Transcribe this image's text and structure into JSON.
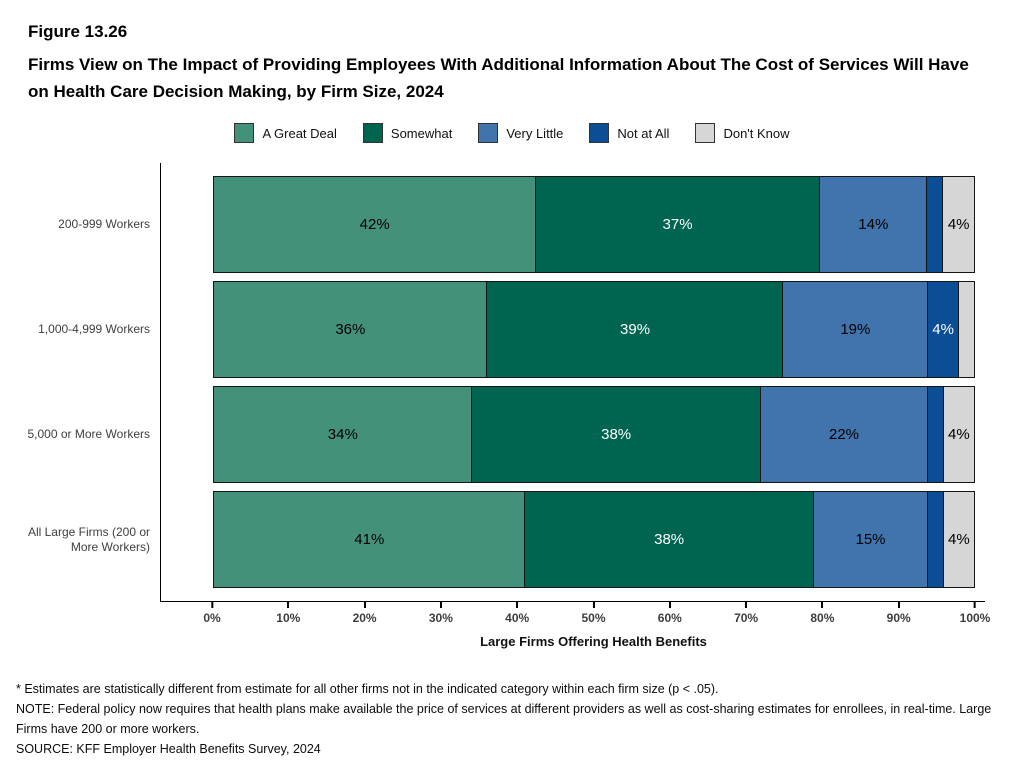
{
  "figure": {
    "number": "Figure 13.26",
    "title": "Firms View on The Impact of Providing Employees With Additional Information About The Cost of Services Will Have on Health Care Decision Making, by Firm Size, 2024"
  },
  "chart_data": {
    "type": "bar",
    "stacked": true,
    "orientation": "horizontal",
    "title": "Firms View on The Impact of Providing Employees With Additional Information About The Cost of Services Will Have on Health Care Decision Making, by Firm Size, 2024",
    "categories": [
      "200-999 Workers",
      "1,000-4,999 Workers",
      "5,000 or More Workers",
      "All Large Firms (200 or More Workers)"
    ],
    "series": [
      {
        "name": "A Great Deal",
        "color": "#44917B",
        "label_color": "#000000",
        "values": [
          42,
          36,
          34,
          41
        ]
      },
      {
        "name": "Somewhat",
        "color": "#006550",
        "label_color": "#ffffff",
        "values": [
          37,
          39,
          38,
          38
        ]
      },
      {
        "name": "Very Little",
        "color": "#4173AD",
        "label_color": "#000000",
        "values": [
          14,
          19,
          22,
          15
        ]
      },
      {
        "name": "Not at All",
        "color": "#0C4E95",
        "label_color": "#ffffff",
        "values": [
          2,
          4,
          2,
          2
        ]
      },
      {
        "name": "Don't Know",
        "color": "#D6D6D6",
        "label_color": "#000000",
        "values": [
          4,
          2,
          4,
          4
        ]
      }
    ],
    "label_threshold": 4,
    "value_suffix": "%",
    "x_ticks": [
      "0%",
      "10%",
      "20%",
      "30%",
      "40%",
      "50%",
      "60%",
      "70%",
      "80%",
      "90%",
      "100%"
    ],
    "xlim": [
      0,
      100
    ],
    "xlabel": "Large Firms Offering Health Benefits",
    "legend_position": "top",
    "grid": false
  },
  "footnotes": [
    "* Estimates are statistically different from estimate for all other firms not in the indicated category within each firm size (p < .05).",
    "NOTE: Federal policy now requires that health plans make available the price of services at different providers as well as cost-sharing estimates for enrollees, in real-time. Large Firms have 200 or more workers.",
    "SOURCE: KFF Employer Health Benefits Survey, 2024"
  ]
}
